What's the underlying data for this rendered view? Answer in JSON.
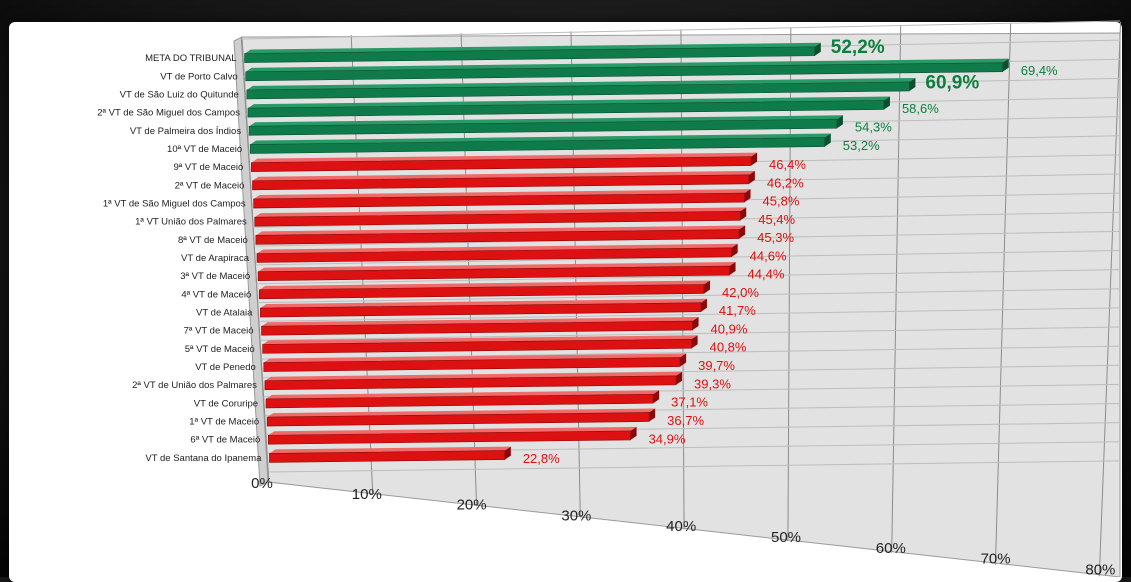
{
  "chart_data": {
    "type": "bar",
    "orientation": "horizontal",
    "categories": [
      "META DO TRIBUNAL",
      "VT de Porto Calvo",
      "VT de São Luiz do Quitunde",
      "2ª VT de São Miguel dos Campos",
      "VT de Palmeira dos Índios",
      "10ª VT de Maceió",
      "9ª VT de Maceió",
      "2ª VT de Maceió",
      "1ª VT de São Miguel dos Campos",
      "1ª VT União dos Palmares",
      "8ª VT de Maceió",
      "VT de Arapiraca",
      "3ª VT de Maceió",
      "4ª VT de Maceió",
      "VT de Atalaia",
      "7ª VT de Maceió",
      "5ª VT de Maceió",
      "VT de Penedo",
      "2ª VT de União dos Palmares",
      "VT de Coruripe",
      "1ª VT de Maceió",
      "6ª VT de Maceió",
      "VT de Santana do Ipanema"
    ],
    "values": [
      52.2,
      69.4,
      60.9,
      58.6,
      54.3,
      53.2,
      46.4,
      46.2,
      45.8,
      45.4,
      45.3,
      44.6,
      44.4,
      42.0,
      41.7,
      40.9,
      40.8,
      39.7,
      39.3,
      37.1,
      36.7,
      34.9,
      22.8
    ],
    "value_labels": [
      "52,2%",
      "69,4%",
      "60,9%",
      "58,6%",
      "54,3%",
      "53,2%",
      "46,4%",
      "46,2%",
      "45,8%",
      "45,4%",
      "45,3%",
      "44,6%",
      "44,4%",
      "42,0%",
      "41,7%",
      "40,9%",
      "40,8%",
      "39,7%",
      "39,3%",
      "37,1%",
      "36,7%",
      "34,9%",
      "22,8%"
    ],
    "bar_colors": [
      "green",
      "green",
      "green",
      "green",
      "green",
      "green",
      "red",
      "red",
      "red",
      "red",
      "red",
      "red",
      "red",
      "red",
      "red",
      "red",
      "red",
      "red",
      "red",
      "red",
      "red",
      "red",
      "red"
    ],
    "highlighted_labels": [
      0,
      2
    ],
    "xlim": [
      0,
      80
    ],
    "x_ticks": [
      "0%",
      "10%",
      "20%",
      "30%",
      "40%",
      "50%",
      "60%",
      "70%",
      "80%"
    ],
    "grid": true,
    "perspective": "3d-skewed",
    "colors": {
      "green": "#0f7a4a",
      "red": "#dd1111",
      "green_label": "#0b7f3d",
      "red_label": "#dd1111"
    }
  }
}
